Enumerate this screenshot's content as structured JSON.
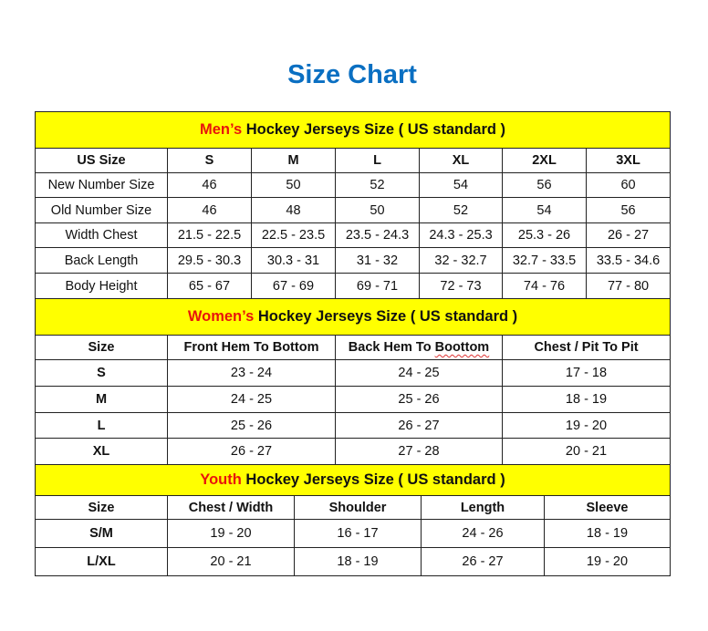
{
  "title": "Size Chart",
  "colors": {
    "title": "#0a6fc2",
    "band": "#ffff00",
    "highlight": "#e8140c"
  },
  "sections": [
    {
      "id": "men",
      "band_highlight": "Men’s",
      "band_rest": " Hockey Jerseys Size ( US standard )",
      "headers": [
        "US Size",
        "S",
        "M",
        "L",
        "XL",
        "2XL",
        "3XL"
      ],
      "rows": [
        [
          "New Number Size",
          "46",
          "50",
          "52",
          "54",
          "56",
          "60"
        ],
        [
          "Old Number Size",
          "46",
          "48",
          "50",
          "52",
          "54",
          "56"
        ],
        [
          "Width Chest",
          "21.5 - 22.5",
          "22.5 - 23.5",
          "23.5 - 24.3",
          "24.3 - 25.3",
          "25.3 - 26",
          "26 - 27"
        ],
        [
          "Back Length",
          "29.5 - 30.3",
          "30.3 - 31",
          "31 - 32",
          "32 - 32.7",
          "32.7 - 33.5",
          "33.5 - 34.6"
        ],
        [
          "Body Height",
          "65 - 67",
          "67 - 69",
          "69 - 71",
          "72 - 73",
          "74 - 76",
          "77 - 80"
        ]
      ]
    },
    {
      "id": "women",
      "band_highlight": "Women’s",
      "band_rest": " Hockey Jerseys Size ( US standard )",
      "headers": [
        "Size",
        "Front Hem To Bottom",
        "Back Hem To Boottom",
        "Chest / Pit To Pit"
      ],
      "rows": [
        [
          "S",
          "23 - 24",
          "24 - 25",
          "17 - 18"
        ],
        [
          "M",
          "24 - 25",
          "25 - 26",
          "18 - 19"
        ],
        [
          "L",
          "25 - 26",
          "26 - 27",
          "19 - 20"
        ],
        [
          "XL",
          "26 - 27",
          "27 - 28",
          "20 - 21"
        ]
      ]
    },
    {
      "id": "youth",
      "band_highlight": "Youth",
      "band_rest": " Hockey Jerseys Size ( US standard )",
      "headers": [
        "Size",
        "Chest / Width",
        "Shoulder",
        "Length",
        "Sleeve"
      ],
      "rows": [
        [
          "S/M",
          "19 - 20",
          "16 - 17",
          "24 - 26",
          "18 - 19"
        ],
        [
          "L/XL",
          "20 - 21",
          "18 - 19",
          "26 - 27",
          "19 - 20"
        ]
      ]
    }
  ]
}
